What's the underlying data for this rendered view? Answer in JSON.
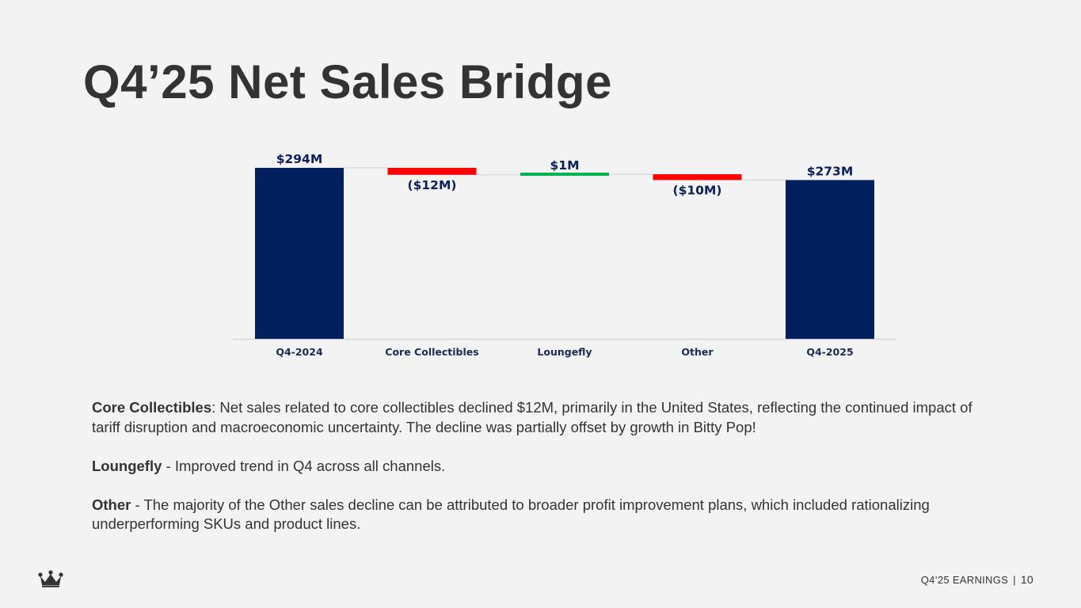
{
  "slide": {
    "title": "Q4’25 Net Sales Bridge"
  },
  "chart_data": {
    "type": "bar",
    "subtype": "waterfall",
    "categories": [
      "Q4-2024",
      "Core Collectibles",
      "Loungefly",
      "Other",
      "Q4-2025"
    ],
    "values": [
      294,
      -12,
      1,
      -10,
      273
    ],
    "kinds": [
      "total",
      "delta",
      "delta",
      "delta",
      "total"
    ],
    "unit": "$M",
    "data_labels": [
      "$294M",
      "($12M)",
      "$1M",
      "($10M)",
      "$273M"
    ],
    "colors": {
      "total": "#001f5c",
      "decrease": "#ff0000",
      "increase": "#00b050",
      "label": "#0a1f5c",
      "connector": "#d0d0d0"
    },
    "ylim": [
      0,
      294
    ],
    "grid": false,
    "legend": "none"
  },
  "notes": [
    {
      "heading": "Core Collectibles",
      "separator": ": ",
      "text": "Net sales related to core collectibles declined $12M, primarily in the United States, reflecting the continued impact of tariff disruption and macroeconomic uncertainty. The decline was partially offset by growth in Bitty Pop!"
    },
    {
      "heading": "Loungefly",
      "separator": " - ",
      "text": "Improved trend in Q4 across all channels."
    },
    {
      "heading": "Other",
      "separator": " - ",
      "text": "The majority of the Other sales decline can be attributed to broader profit improvement plans, which included rationalizing underperforming SKUs and product lines."
    }
  ],
  "footer": {
    "logo_icon": "crown-icon",
    "label": "Q4’25 EARNINGS",
    "separator": "|",
    "page_number": "10"
  }
}
